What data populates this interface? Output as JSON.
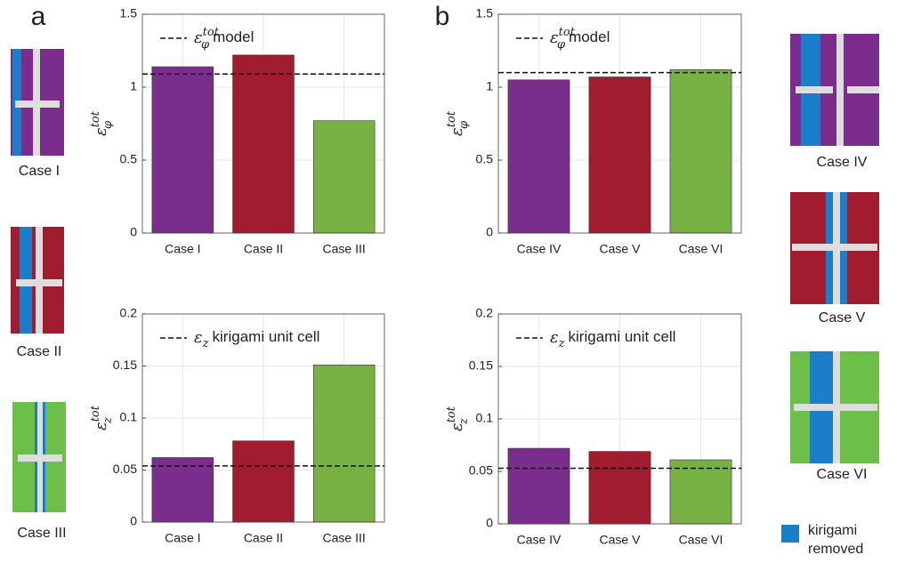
{
  "panels": [
    "a",
    "b"
  ],
  "illustrations": {
    "left": [
      "Case I",
      "Case II",
      "Case III"
    ],
    "right": [
      "Case IV",
      "Case V",
      "Case VI"
    ]
  },
  "legend": {
    "lines": [
      "kirigami",
      "removed"
    ],
    "color": "#1a7fc8"
  },
  "chart_data": [
    {
      "type": "bar",
      "categories": [
        "Case I",
        "Case II",
        "Case III"
      ],
      "values": [
        1.14,
        1.22,
        0.77
      ],
      "colors": [
        "#7b2d8e",
        "#a01c2e",
        "#77b043"
      ],
      "ylim": [
        0,
        1.5
      ],
      "yticks": [
        0,
        0.5,
        1,
        1.5
      ],
      "grid": true,
      "ylabel": {
        "symbol": "ε",
        "sub": "φ",
        "sup": "tot"
      },
      "reference": {
        "symbol": "ε",
        "sub": "φ",
        "sup": "tot",
        "text": "model",
        "value": 1.09
      }
    },
    {
      "type": "bar",
      "categories": [
        "Case I",
        "Case II",
        "Case III"
      ],
      "values": [
        0.062,
        0.078,
        0.151
      ],
      "colors": [
        "#7b2d8e",
        "#a01c2e",
        "#77b043"
      ],
      "ylim": [
        0,
        0.2
      ],
      "yticks": [
        0,
        0.05,
        0.1,
        0.15,
        0.2
      ],
      "grid": true,
      "ylabel": {
        "symbol": "ε",
        "sub": "z",
        "sup": "tot"
      },
      "reference": {
        "symbol": "ε",
        "sub": "z",
        "text": "kirigami unit cell",
        "value": 0.054
      }
    },
    {
      "type": "bar",
      "categories": [
        "Case IV",
        "Case V",
        "Case VI"
      ],
      "values": [
        1.05,
        1.07,
        1.12
      ],
      "colors": [
        "#7b2d8e",
        "#a01c2e",
        "#77b043"
      ],
      "ylim": [
        0,
        1.5
      ],
      "yticks": [
        0,
        0.5,
        1,
        1.5
      ],
      "grid": true,
      "ylabel": {
        "symbol": "ε",
        "sub": "φ",
        "sup": "tot"
      },
      "reference": {
        "symbol": "ε",
        "sub": "φ",
        "sup": "tot",
        "text": "model",
        "value": 1.1
      }
    },
    {
      "type": "bar",
      "categories": [
        "Case IV",
        "Case V",
        "Case VI"
      ],
      "values": [
        0.072,
        0.069,
        0.061
      ],
      "colors": [
        "#7b2d8e",
        "#a01c2e",
        "#77b043"
      ],
      "ylim": [
        0,
        0.2
      ],
      "yticks": [
        0,
        0.05,
        0.1,
        0.15,
        0.2
      ],
      "grid": true,
      "ylabel": {
        "symbol": "ε",
        "sub": "z",
        "sup": "tot"
      },
      "reference": {
        "symbol": "ε",
        "sub": "z",
        "text": "kirigami unit cell",
        "value": 0.053
      }
    }
  ]
}
